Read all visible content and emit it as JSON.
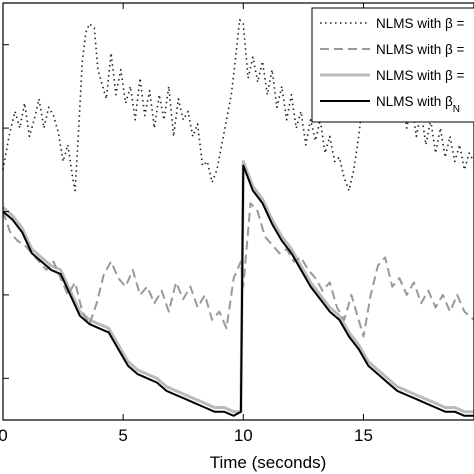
{
  "chart_data": {
    "type": "line",
    "title": "",
    "xlabel": "Time (seconds)",
    "ylabel": "",
    "xlim": [
      0,
      19.6
    ],
    "ylim": [
      0,
      1
    ],
    "x_ticks": [
      0,
      5,
      10,
      15
    ],
    "x_tick_labels": [
      "0",
      "5",
      "10",
      "15"
    ],
    "grid": false,
    "legend_position": "top-right",
    "series": [
      {
        "name": "NLMS with β = ",
        "style": "dotted",
        "color": "#222222",
        "x": [
          0,
          0.25,
          0.5,
          0.7,
          0.9,
          1.1,
          1.3,
          1.5,
          1.7,
          1.9,
          2.1,
          2.3,
          2.5,
          2.7,
          2.9,
          3.0,
          3.15,
          3.3,
          3.45,
          3.6,
          3.8,
          3.95,
          4.1,
          4.3,
          4.5,
          4.7,
          4.9,
          5.1,
          5.3,
          5.5,
          5.7,
          5.9,
          6.1,
          6.3,
          6.5,
          6.7,
          6.9,
          7.1,
          7.3,
          7.5,
          7.7,
          7.9,
          8.1,
          8.3,
          8.5,
          8.7,
          8.9,
          9.1,
          9.3,
          9.5,
          9.7,
          9.85,
          10.0,
          10.2,
          10.4,
          10.6,
          10.8,
          11.0,
          11.2,
          11.4,
          11.6,
          11.8,
          12.0,
          12.2,
          12.4,
          12.6,
          12.8,
          13.0,
          13.2,
          13.4,
          13.6,
          13.8,
          14.0,
          14.2,
          14.4,
          14.6,
          14.8,
          15.0,
          15.2,
          15.4,
          15.6,
          15.8,
          16.0,
          16.2,
          16.4,
          16.6,
          16.8,
          17.0,
          17.2,
          17.4,
          17.6,
          17.8,
          18.0,
          18.2,
          18.4,
          18.6,
          18.8,
          19.0,
          19.2,
          19.4,
          19.6
        ],
        "y": [
          0.6,
          0.68,
          0.74,
          0.7,
          0.76,
          0.68,
          0.72,
          0.77,
          0.7,
          0.75,
          0.73,
          0.69,
          0.62,
          0.66,
          0.58,
          0.55,
          0.7,
          0.86,
          0.93,
          0.95,
          0.94,
          0.84,
          0.81,
          0.77,
          0.88,
          0.78,
          0.84,
          0.76,
          0.8,
          0.72,
          0.82,
          0.73,
          0.79,
          0.7,
          0.78,
          0.72,
          0.8,
          0.68,
          0.77,
          0.72,
          0.74,
          0.68,
          0.71,
          0.61,
          0.62,
          0.57,
          0.6,
          0.66,
          0.72,
          0.78,
          0.88,
          0.96,
          0.95,
          0.82,
          0.87,
          0.81,
          0.86,
          0.78,
          0.84,
          0.75,
          0.8,
          0.72,
          0.78,
          0.7,
          0.74,
          0.66,
          0.72,
          0.67,
          0.72,
          0.64,
          0.68,
          0.62,
          0.63,
          0.58,
          0.55,
          0.6,
          0.68,
          0.78,
          0.9,
          0.86,
          0.8,
          0.85,
          0.75,
          0.82,
          0.72,
          0.78,
          0.7,
          0.76,
          0.68,
          0.74,
          0.66,
          0.72,
          0.64,
          0.7,
          0.63,
          0.68,
          0.62,
          0.66,
          0.6,
          0.64,
          0.62
        ]
      },
      {
        "name": "NLMS with β = ",
        "style": "dashed",
        "color": "#999999",
        "x": [
          0,
          0.3,
          0.6,
          0.9,
          1.2,
          1.5,
          1.8,
          2.1,
          2.4,
          2.7,
          3.0,
          3.3,
          3.6,
          3.9,
          4.2,
          4.5,
          4.8,
          5.1,
          5.4,
          5.7,
          6.0,
          6.3,
          6.6,
          6.9,
          7.2,
          7.5,
          7.8,
          8.1,
          8.4,
          8.7,
          9.0,
          9.3,
          9.6,
          9.9,
          10.0,
          10.3,
          10.6,
          10.9,
          11.2,
          11.5,
          11.8,
          12.1,
          12.4,
          12.7,
          13.0,
          13.3,
          13.6,
          13.9,
          14.2,
          14.5,
          14.8,
          15.0,
          15.3,
          15.6,
          15.9,
          16.2,
          16.5,
          16.8,
          17.1,
          17.4,
          17.7,
          18.0,
          18.3,
          18.6,
          18.9,
          19.2,
          19.6
        ],
        "y": [
          0.5,
          0.45,
          0.43,
          0.42,
          0.4,
          0.38,
          0.36,
          0.38,
          0.34,
          0.3,
          0.33,
          0.26,
          0.23,
          0.28,
          0.35,
          0.38,
          0.34,
          0.32,
          0.36,
          0.3,
          0.32,
          0.28,
          0.31,
          0.26,
          0.33,
          0.29,
          0.32,
          0.27,
          0.3,
          0.24,
          0.26,
          0.22,
          0.34,
          0.38,
          0.32,
          0.52,
          0.5,
          0.44,
          0.42,
          0.4,
          0.41,
          0.38,
          0.39,
          0.36,
          0.34,
          0.31,
          0.33,
          0.27,
          0.24,
          0.3,
          0.24,
          0.2,
          0.3,
          0.37,
          0.39,
          0.32,
          0.34,
          0.3,
          0.33,
          0.28,
          0.31,
          0.27,
          0.3,
          0.26,
          0.3,
          0.26,
          0.24
        ]
      },
      {
        "name": "NLMS with β = ",
        "style": "solid",
        "color": "#bbbbbb",
        "x": [
          0,
          0.4,
          0.8,
          1.2,
          1.6,
          2.0,
          2.4,
          2.8,
          3.2,
          3.6,
          4.0,
          4.4,
          4.8,
          5.2,
          5.6,
          6.0,
          6.4,
          6.8,
          7.2,
          7.6,
          8.0,
          8.4,
          8.8,
          9.2,
          9.6,
          9.9,
          10.0,
          10.4,
          10.8,
          11.2,
          11.6,
          12.0,
          12.4,
          12.8,
          13.2,
          13.6,
          14.0,
          14.4,
          14.8,
          15.2,
          15.6,
          16.0,
          16.4,
          16.8,
          17.2,
          17.6,
          18.0,
          18.4,
          18.8,
          19.2,
          19.6
        ],
        "y": [
          0.51,
          0.49,
          0.46,
          0.41,
          0.39,
          0.37,
          0.36,
          0.31,
          0.26,
          0.24,
          0.23,
          0.22,
          0.18,
          0.14,
          0.12,
          0.11,
          0.1,
          0.08,
          0.07,
          0.06,
          0.05,
          0.04,
          0.03,
          0.03,
          0.02,
          0.02,
          0.62,
          0.56,
          0.53,
          0.48,
          0.44,
          0.41,
          0.37,
          0.33,
          0.3,
          0.27,
          0.25,
          0.21,
          0.18,
          0.14,
          0.12,
          0.1,
          0.08,
          0.07,
          0.06,
          0.05,
          0.04,
          0.03,
          0.03,
          0.02,
          0.02
        ]
      },
      {
        "name": "NLMS with β",
        "name_subscript": "N",
        "style": "solid",
        "color": "#000000",
        "x": [
          0,
          0.4,
          0.8,
          1.2,
          1.6,
          2.0,
          2.4,
          2.8,
          3.2,
          3.6,
          4.0,
          4.4,
          4.8,
          5.2,
          5.6,
          6.0,
          6.4,
          6.8,
          7.2,
          7.6,
          8.0,
          8.4,
          8.8,
          9.2,
          9.6,
          9.9,
          10.0,
          10.4,
          10.8,
          11.2,
          11.6,
          12.0,
          12.4,
          12.8,
          13.2,
          13.6,
          14.0,
          14.4,
          14.8,
          15.2,
          15.6,
          16.0,
          16.4,
          16.8,
          17.2,
          17.6,
          18.0,
          18.4,
          18.8,
          19.2,
          19.6
        ],
        "y": [
          0.5,
          0.48,
          0.45,
          0.4,
          0.38,
          0.36,
          0.35,
          0.3,
          0.25,
          0.23,
          0.22,
          0.21,
          0.17,
          0.13,
          0.11,
          0.1,
          0.09,
          0.07,
          0.06,
          0.05,
          0.04,
          0.03,
          0.02,
          0.02,
          0.01,
          0.02,
          0.61,
          0.55,
          0.52,
          0.47,
          0.43,
          0.4,
          0.36,
          0.32,
          0.29,
          0.26,
          0.24,
          0.2,
          0.17,
          0.13,
          0.11,
          0.09,
          0.07,
          0.06,
          0.05,
          0.04,
          0.03,
          0.02,
          0.02,
          0.01,
          0.01
        ]
      }
    ]
  }
}
